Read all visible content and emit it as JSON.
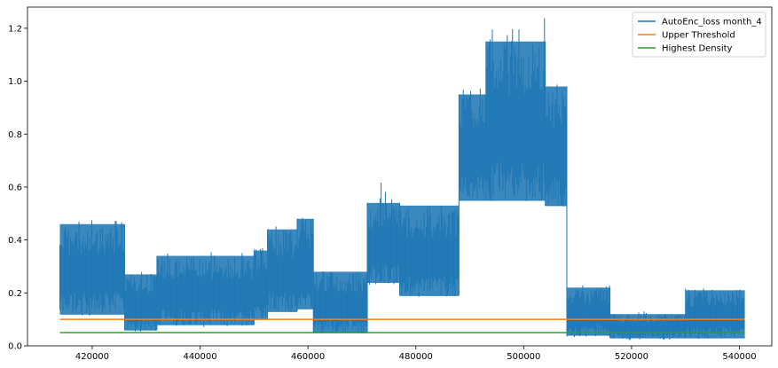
{
  "chart_data": {
    "type": "line",
    "title": "",
    "xlabel": "",
    "ylabel": "",
    "xlim": [
      408000,
      546000
    ],
    "ylim": [
      0.0,
      1.28
    ],
    "xticks": [
      420000,
      440000,
      460000,
      480000,
      500000,
      520000,
      540000
    ],
    "xtick_labels": [
      "420000",
      "440000",
      "460000",
      "480000",
      "500000",
      "520000",
      "540000"
    ],
    "yticks": [
      0.0,
      0.2,
      0.4,
      0.6,
      0.8,
      1.0,
      1.2
    ],
    "ytick_labels": [
      "0.0",
      "0.2",
      "0.4",
      "0.6",
      "0.8",
      "1.0",
      "1.2"
    ],
    "grid": false,
    "legend_position": "top-right",
    "series": [
      {
        "name": "AutoEnc_loss month_4",
        "color": "#1f77b4",
        "style": "dense-oscillating",
        "segments": [
          {
            "x": [
              414000,
              426000
            ],
            "low": 0.12,
            "high": 0.46,
            "peak": 0.48
          },
          {
            "x": [
              426000,
              432000
            ],
            "low": 0.06,
            "high": 0.27,
            "peak": 0.28
          },
          {
            "x": [
              432000,
              450000
            ],
            "low": 0.08,
            "high": 0.34,
            "peak": 0.36
          },
          {
            "x": [
              450000,
              452500
            ],
            "low": 0.1,
            "high": 0.36,
            "peak": 0.37
          },
          {
            "x": [
              452500,
              458000
            ],
            "low": 0.13,
            "high": 0.44,
            "peak": 0.46
          },
          {
            "x": [
              458000,
              461000
            ],
            "low": 0.14,
            "high": 0.48,
            "peak": 0.5
          },
          {
            "x": [
              461000,
              471000
            ],
            "low": 0.05,
            "high": 0.28,
            "peak": 0.3
          },
          {
            "x": [
              471000,
              477000
            ],
            "low": 0.24,
            "high": 0.54,
            "peak": 0.62
          },
          {
            "x": [
              477000,
              488000
            ],
            "low": 0.19,
            "high": 0.53,
            "peak": 0.54
          },
          {
            "x": [
              488000,
              493000
            ],
            "low": 0.55,
            "high": 0.95,
            "peak": 1.02
          },
          {
            "x": [
              493000,
              504000
            ],
            "low": 0.55,
            "high": 1.15,
            "peak": 1.24
          },
          {
            "x": [
              504000,
              508000
            ],
            "low": 0.53,
            "high": 0.98,
            "peak": 1.0
          },
          {
            "x": [
              508000,
              516000
            ],
            "low": 0.04,
            "high": 0.22,
            "peak": 0.23
          },
          {
            "x": [
              516000,
              530000
            ],
            "low": 0.03,
            "high": 0.12,
            "peak": 0.13
          },
          {
            "x": [
              530000,
              541000
            ],
            "low": 0.03,
            "high": 0.21,
            "peak": 0.22
          }
        ]
      },
      {
        "name": "Upper Threshold",
        "color": "#ff7f0e",
        "x": [
          414000,
          541000
        ],
        "values": [
          0.1,
          0.1
        ]
      },
      {
        "name": "Highest Density",
        "color": "#2ca02c",
        "x": [
          414000,
          541000
        ],
        "values": [
          0.05,
          0.05
        ]
      }
    ]
  }
}
